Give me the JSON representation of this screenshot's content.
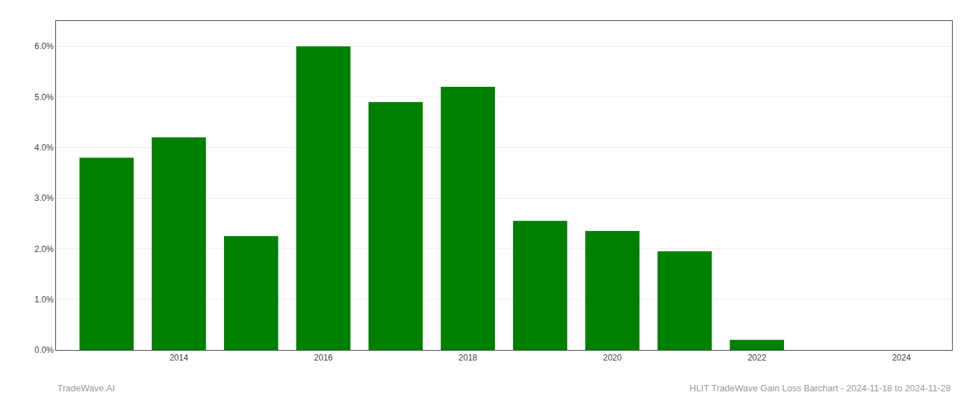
{
  "chart_data": {
    "type": "bar",
    "x": [
      2013,
      2014,
      2015,
      2016,
      2017,
      2018,
      2019,
      2020,
      2021,
      2022,
      2023
    ],
    "values": [
      0.038,
      0.042,
      0.0225,
      0.06,
      0.049,
      0.052,
      0.0255,
      0.0235,
      0.0195,
      0.002,
      0.0
    ],
    "color": "#008000",
    "xlim": [
      2012.3,
      2024.7
    ],
    "xticks": [
      2014,
      2016,
      2018,
      2020,
      2022,
      2024
    ],
    "ylim": [
      0.0,
      0.065
    ],
    "yticks": [
      {
        "value": 0.0,
        "label": "0.0%"
      },
      {
        "value": 0.01,
        "label": "1.0%"
      },
      {
        "value": 0.02,
        "label": "2.0%"
      },
      {
        "value": 0.03,
        "label": "3.0%"
      },
      {
        "value": 0.04,
        "label": "4.0%"
      },
      {
        "value": 0.05,
        "label": "5.0%"
      },
      {
        "value": 0.06,
        "label": "6.0%"
      }
    ],
    "grid": "y",
    "annotations": [
      "TradeWave.AI",
      "HLIT TradeWave Gain Loss Barchart - 2024-11-18 to 2024-11-28"
    ]
  }
}
